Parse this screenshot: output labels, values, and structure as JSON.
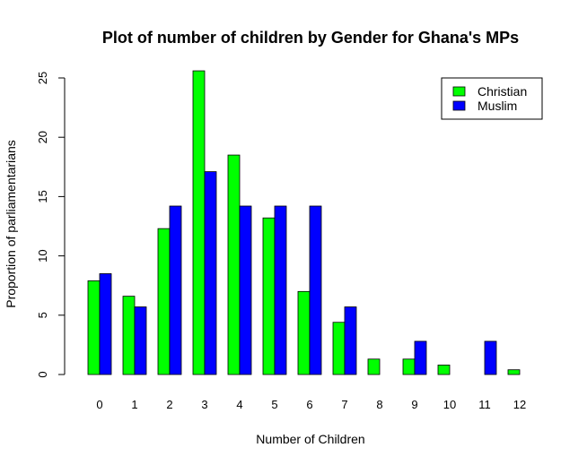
{
  "chart_data": {
    "type": "bar",
    "title": "Plot of number of children by Gender for Ghana's MPs",
    "xlabel": "Number of Children",
    "ylabel": "Proportion of parliamentarians",
    "categories": [
      "0",
      "1",
      "2",
      "3",
      "4",
      "5",
      "6",
      "7",
      "8",
      "9",
      "10",
      "11",
      "12"
    ],
    "series": [
      {
        "name": "Christian",
        "color": "#00ff00",
        "values": [
          7.9,
          6.6,
          12.3,
          25.6,
          18.5,
          13.2,
          7.0,
          4.4,
          1.3,
          1.3,
          0.8,
          0.0,
          0.4
        ]
      },
      {
        "name": "Muslim",
        "color": "#0000ff",
        "values": [
          8.5,
          5.7,
          14.2,
          17.1,
          14.2,
          14.2,
          14.2,
          5.7,
          0.0,
          2.8,
          0.0,
          2.8,
          0.0
        ]
      }
    ],
    "ylim": [
      0,
      25
    ],
    "yticks": [
      "0",
      "5",
      "10",
      "15",
      "20",
      "25"
    ],
    "legend": "top-right",
    "grid": false
  }
}
